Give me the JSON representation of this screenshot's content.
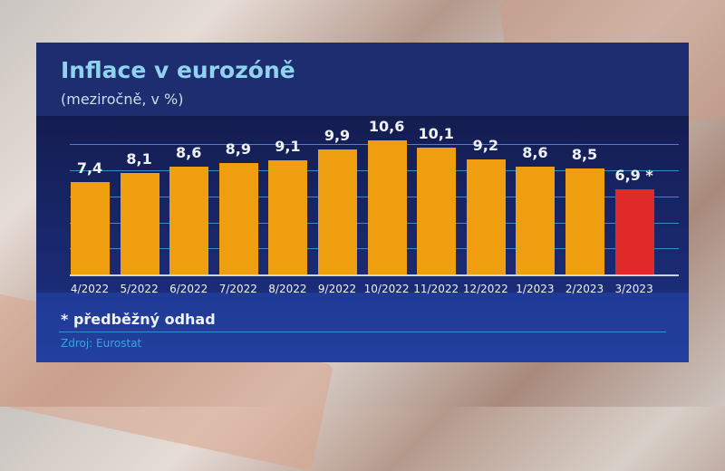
{
  "header": {
    "title": "Inflace v eurozóně",
    "subtitle": "(meziročně, v %)"
  },
  "footnote": "* předběžný odhad",
  "source": "Zdroj: Eurostat",
  "colors": {
    "bar": "#ef9e0f",
    "highlight": "#e02a2a",
    "panel": "#1d3690",
    "title": "#8fd3ef",
    "source": "#36a6e0"
  },
  "chart_data": {
    "type": "bar",
    "title": "Inflace v eurozóně",
    "subtitle": "(meziročně, v %)",
    "categories": [
      "4/2022",
      "5/2022",
      "6/2022",
      "7/2022",
      "8/2022",
      "9/2022",
      "10/2022",
      "11/2022",
      "12/2022",
      "1/2023",
      "2/2023",
      "3/2023"
    ],
    "values": [
      7.4,
      8.1,
      8.6,
      8.9,
      9.1,
      9.9,
      10.6,
      10.1,
      9.2,
      8.6,
      8.5,
      6.9
    ],
    "labels": [
      "7,4",
      "8,1",
      "8,6",
      "8,9",
      "9,1",
      "9,9",
      "10,6",
      "10,1",
      "9,2",
      "8,6",
      "8,5",
      "6,9 *"
    ],
    "highlight_index": 11,
    "annotation": "* předběžný odhad",
    "xlabel": "",
    "ylabel": "%",
    "ylim": [
      0,
      12
    ],
    "grid": true,
    "legend": "none"
  }
}
